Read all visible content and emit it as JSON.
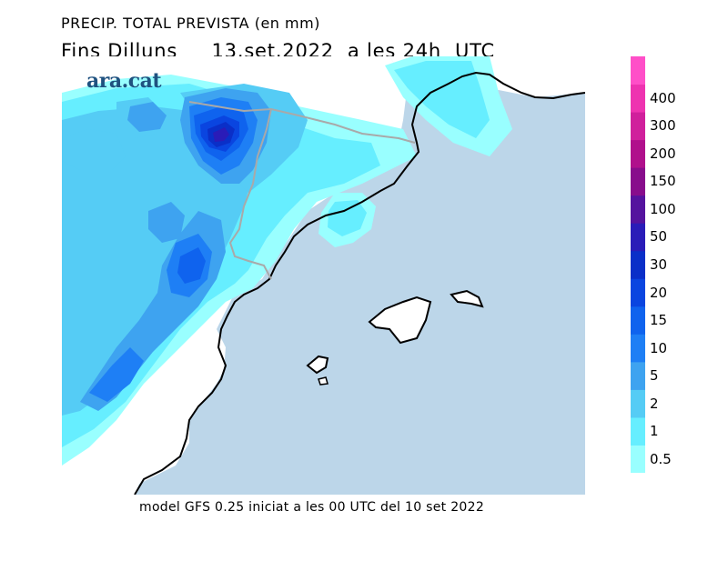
{
  "header": {
    "title_line1": "PRECIP. TOTAL PREVISTA (en mm)",
    "title_line2": "Fins Dilluns     13.set.2022  a les 24h  UTC"
  },
  "logo": {
    "text": "ara.cat"
  },
  "footer": {
    "text": "model GFS 0.25 iniciat a les 00 UTC del 10 set 2022"
  },
  "legend": {
    "levels": [
      {
        "label": "0.5",
        "color": "#99ffff"
      },
      {
        "label": "1",
        "color": "#66eeff"
      },
      {
        "label": "2",
        "color": "#55ccf5"
      },
      {
        "label": "5",
        "color": "#3ea3f0"
      },
      {
        "label": "10",
        "color": "#1e7ff5"
      },
      {
        "label": "15",
        "color": "#0f63ee"
      },
      {
        "label": "20",
        "color": "#0a45e0"
      },
      {
        "label": "30",
        "color": "#0a2fc8"
      },
      {
        "label": "50",
        "color": "#2a1cb8"
      },
      {
        "label": "100",
        "color": "#55139e"
      },
      {
        "label": "150",
        "color": "#880d8c"
      },
      {
        "label": "200",
        "color": "#b0108c"
      },
      {
        "label": "300",
        "color": "#d0209c"
      },
      {
        "label": "400",
        "color": "#ee33b0"
      },
      {
        "label": "",
        "color": "#ff4fc8"
      }
    ]
  },
  "colors": {
    "sea": "#bcd6e9",
    "land": "#ffffff",
    "coast": "#000000",
    "border": "#a9a9a9"
  }
}
